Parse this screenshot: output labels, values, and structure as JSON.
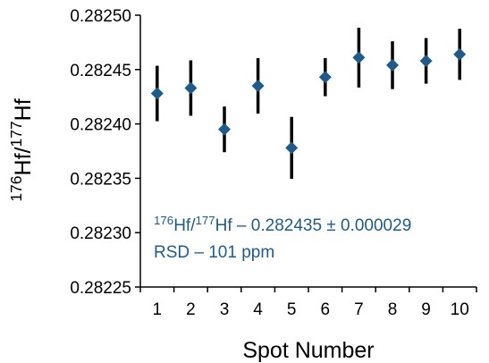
{
  "chart_data": {
    "type": "scatter",
    "title": "",
    "xlabel": "Spot Number",
    "ylabel_parts": [
      {
        "text": "176",
        "sup": true
      },
      {
        "text": "Hf/",
        "sup": false
      },
      {
        "text": "177",
        "sup": true
      },
      {
        "text": "Hf",
        "sup": false
      }
    ],
    "x_ticks": [
      "1",
      "2",
      "3",
      "4",
      "5",
      "6",
      "7",
      "8",
      "9",
      "10"
    ],
    "y_ticks": [
      "0.28225",
      "0.28230",
      "0.28235",
      "0.28240",
      "0.28245",
      "0.28250"
    ],
    "ylim": [
      0.28225,
      0.2825
    ],
    "xlim": [
      0.5,
      10.5
    ],
    "grid": false,
    "marker_color": "#1f5b8a",
    "errorbar_color": "#000000",
    "series": [
      {
        "x": [
          1,
          2,
          3,
          4,
          5,
          6,
          7,
          8,
          9,
          10
        ],
        "y": [
          0.282428,
          0.282433,
          0.282395,
          0.282435,
          0.282378,
          0.282443,
          0.282461,
          0.282454,
          0.282458,
          0.282464
        ],
        "err": [
          2.55e-05,
          2.55e-05,
          2.1e-05,
          2.55e-05,
          2.85e-05,
          1.75e-05,
          2.75e-05,
          2.2e-05,
          2.1e-05,
          2.35e-05
        ]
      }
    ],
    "annotation": {
      "color": "#1f5b8a",
      "line1_parts": [
        {
          "text": "176",
          "sup": true
        },
        {
          "text": "Hf/",
          "sup": false
        },
        {
          "text": "177",
          "sup": true
        },
        {
          "text": "Hf – 0.282435 ± 0.000029",
          "sup": false
        }
      ],
      "line2": "RSD – 101 ppm"
    }
  }
}
